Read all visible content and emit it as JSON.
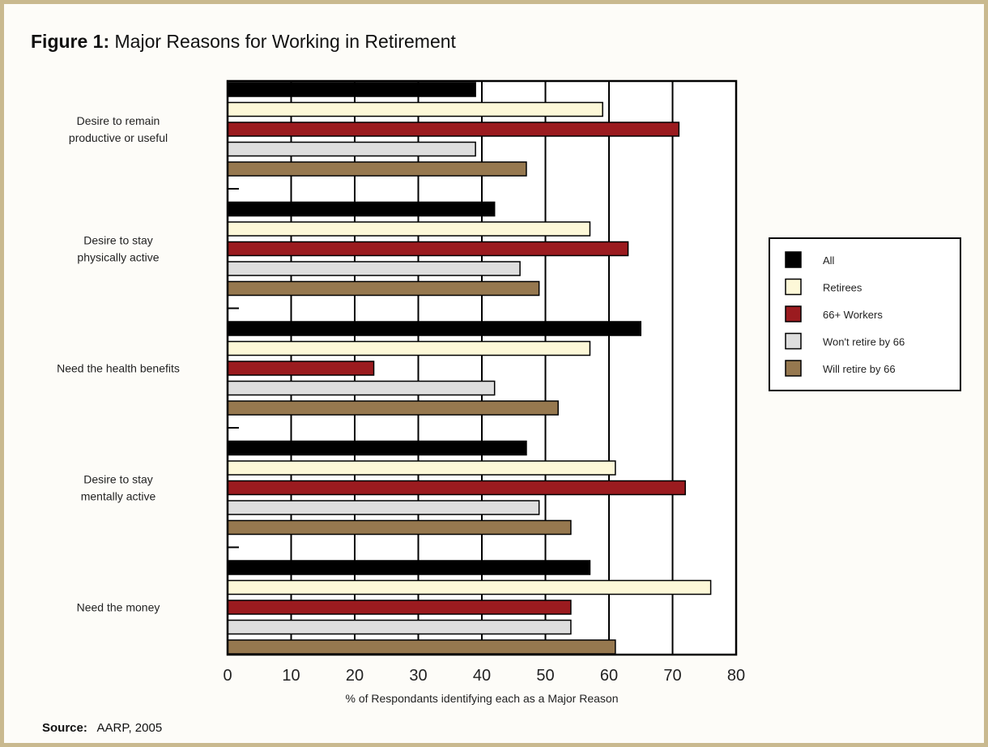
{
  "title": {
    "prefix": "Figure 1:",
    "text": "Major Reasons for Working in Retirement"
  },
  "source": {
    "label": "Source:",
    "text": "AARP, 2005"
  },
  "chart_data": {
    "type": "bar",
    "orientation": "horizontal",
    "title": "Figure 1: Major Reasons for Working in Retirement",
    "xlabel": "% of Respondants identifying each as a Major Reason",
    "xlim": [
      0,
      80
    ],
    "xticks": [
      0,
      10,
      20,
      30,
      40,
      50,
      60,
      70,
      80
    ],
    "grid": "vertical",
    "legend_position": "right",
    "categories": [
      [
        "Desire to remain",
        "productive or useful"
      ],
      [
        "Desire to stay",
        "physically active"
      ],
      [
        "Need the health benefits"
      ],
      [
        "Desire to stay",
        "mentally active"
      ],
      [
        "Need the money"
      ]
    ],
    "series": [
      {
        "name": "All",
        "color": "#000000",
        "values": [
          39,
          42,
          65,
          47,
          57
        ]
      },
      {
        "name": "Retirees",
        "color": "#fdf8d8",
        "values": [
          59,
          57,
          57,
          61,
          76
        ]
      },
      {
        "name": "66+ Workers",
        "color": "#9b1b1f",
        "values": [
          71,
          63,
          23,
          72,
          54
        ]
      },
      {
        "name": "Won't retire by 66",
        "color": "#dedede",
        "values": [
          39,
          46,
          42,
          49,
          54
        ]
      },
      {
        "name": "Will retire by 66",
        "color": "#96784f",
        "values": [
          47,
          49,
          52,
          54,
          61
        ]
      }
    ]
  }
}
